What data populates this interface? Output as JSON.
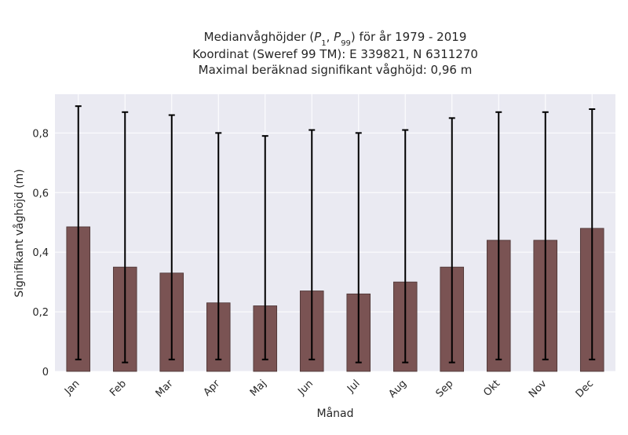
{
  "chart_data": {
    "type": "bar",
    "title_lines": [
      "Medianvåghöjder (P1, P99) för år 1979 - 2019",
      "Koordinat (Sweref 99 TM): E 339821, N 6311270",
      "Maximal beräknad signifikant våghöjd: 0,96 m"
    ],
    "xlabel": "Månad",
    "ylabel": "Signifikant våghöjd (m)",
    "categories": [
      "Jan",
      "Feb",
      "Mar",
      "Apr",
      "Maj",
      "Jun",
      "Jul",
      "Aug",
      "Sep",
      "Okt",
      "Nov",
      "Dec"
    ],
    "values": [
      0.485,
      0.35,
      0.33,
      0.23,
      0.22,
      0.27,
      0.26,
      0.3,
      0.35,
      0.44,
      0.44,
      0.48
    ],
    "error_low": [
      0.04,
      0.03,
      0.04,
      0.04,
      0.04,
      0.04,
      0.03,
      0.03,
      0.03,
      0.04,
      0.04,
      0.04
    ],
    "error_high": [
      0.89,
      0.87,
      0.86,
      0.8,
      0.79,
      0.81,
      0.8,
      0.81,
      0.85,
      0.87,
      0.87,
      0.88
    ],
    "ylim": [
      0,
      0.93
    ],
    "yticks": [
      0,
      0.2,
      0.4,
      0.6,
      0.8
    ],
    "ytick_labels": [
      "0",
      "0,2",
      "0,4",
      "0,6",
      "0,8"
    ],
    "grid": true,
    "colors": {
      "bar": "#7a5353",
      "bar_edge": "#4a3333",
      "error_bar": "#000000",
      "plot_background": "#eaeaf2",
      "grid": "#ffffff"
    }
  }
}
